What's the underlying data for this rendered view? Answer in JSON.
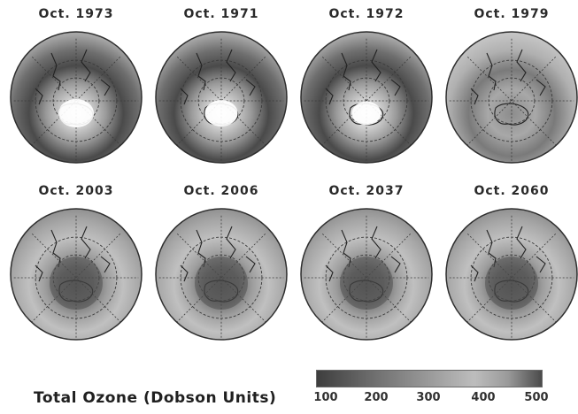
{
  "panels": [
    {
      "label": "Oct. 1973",
      "center_ozone": "high",
      "hole": true,
      "hole_intensity": 1.0
    },
    {
      "label": "Oct. 1971",
      "center_ozone": "high",
      "hole": true,
      "hole_intensity": 0.9
    },
    {
      "label": "Oct. 1972",
      "center_ozone": "high",
      "hole": true,
      "hole_intensity": 0.75
    },
    {
      "label": "Oct. 1979",
      "center_ozone": "moderate",
      "hole": false,
      "hole_intensity": 0.0
    },
    {
      "label": "Oct. 2003",
      "center_ozone": "low",
      "hole": false,
      "hole_intensity": 0.0
    },
    {
      "label": "Oct. 2006",
      "center_ozone": "low",
      "hole": false,
      "hole_intensity": 0.0
    },
    {
      "label": "Oct. 2037",
      "center_ozone": "low",
      "hole": false,
      "hole_intensity": 0.0
    },
    {
      "label": "Oct. 2060",
      "center_ozone": "low",
      "hole": false,
      "hole_intensity": 0.0
    }
  ],
  "legend": {
    "title": "Total Ozone (Dobson Units)",
    "ticks": [
      "100",
      "200",
      "300",
      "400",
      "500"
    ]
  },
  "colors": {
    "ring_dark": "#3a3a3a",
    "disk_light": "#c8c8c8",
    "hole_white": "#ffffff",
    "outline": "#2e2e2e"
  }
}
